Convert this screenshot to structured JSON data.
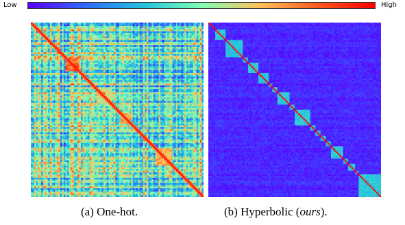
{
  "colorbar": {
    "low_label": "Low",
    "high_label": "High",
    "colors": [
      "#5a00ff",
      "#2f6bff",
      "#24c3dc",
      "#80ffb4",
      "#ffc15a",
      "#ff5a1e",
      "#ff0000"
    ]
  },
  "captions": {
    "a": "(a) One-hot.",
    "b_prefix": "(b) Hyperbolic (",
    "b_emph": "ours",
    "b_suffix": ")."
  },
  "chart_data": [
    {
      "type": "heatmap",
      "title": "(a) One-hot.",
      "matrix_size": 100,
      "value_range": [
        0,
        1
      ],
      "diagonal_value": 1.0,
      "description_of_values": "Pairwise similarity matrix; diagonal high, off-diagonal mostly mid-range with red clustered blocks",
      "blocks": [
        {
          "start": 20,
          "end": 28,
          "value": 0.92
        },
        {
          "start": 38,
          "end": 46,
          "value": 0.7
        },
        {
          "start": 52,
          "end": 58,
          "value": 0.8
        },
        {
          "start": 72,
          "end": 82,
          "value": 0.78
        }
      ],
      "background_mean": 0.45
    },
    {
      "type": "heatmap",
      "title": "(b) Hyperbolic (ours).",
      "matrix_size": 100,
      "value_range": [
        0,
        1
      ],
      "diagonal_value": 1.0,
      "description_of_values": "Pairwise similarity matrix; diagonal high, clear block-diagonal clusters, off-diagonal low",
      "blocks": [
        {
          "start": 4,
          "end": 10,
          "value": 0.35
        },
        {
          "start": 10,
          "end": 20,
          "value": 0.33
        },
        {
          "start": 20,
          "end": 23,
          "value": 0.33
        },
        {
          "start": 23,
          "end": 29,
          "value": 0.35
        },
        {
          "start": 29,
          "end": 35,
          "value": 0.33
        },
        {
          "start": 35,
          "end": 37,
          "value": 0.33
        },
        {
          "start": 37,
          "end": 40,
          "value": 0.33
        },
        {
          "start": 40,
          "end": 47,
          "value": 0.35
        },
        {
          "start": 47,
          "end": 50,
          "value": 0.33
        },
        {
          "start": 50,
          "end": 59,
          "value": 0.35
        },
        {
          "start": 59,
          "end": 62,
          "value": 0.33
        },
        {
          "start": 62,
          "end": 65,
          "value": 0.33
        },
        {
          "start": 65,
          "end": 68,
          "value": 0.33
        },
        {
          "start": 68,
          "end": 71,
          "value": 0.33
        },
        {
          "start": 71,
          "end": 78,
          "value": 0.35
        },
        {
          "start": 78,
          "end": 81,
          "value": 0.33
        },
        {
          "start": 81,
          "end": 85,
          "value": 0.33
        },
        {
          "start": 85,
          "end": 87,
          "value": 0.33
        },
        {
          "start": 87,
          "end": 100,
          "value": 0.35
        }
      ],
      "background_mean": 0.06
    }
  ]
}
